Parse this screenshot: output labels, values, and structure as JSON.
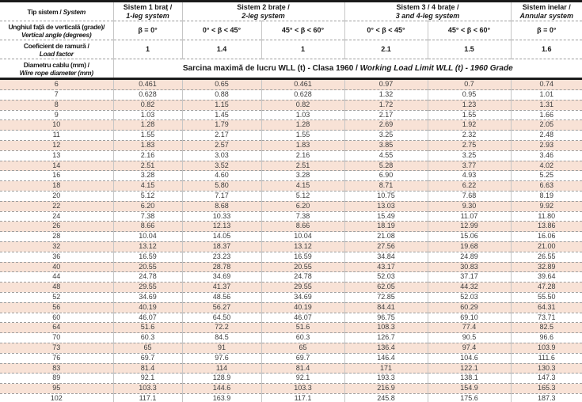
{
  "table": {
    "colors": {
      "row_shade": "#f8e2d6",
      "rule_dark": "#1b1b1b"
    },
    "corner": {
      "ro": "Tip sistem /",
      "en": "System"
    },
    "systems": [
      {
        "ro": "Sistem 1 braț /",
        "en": "1-leg system"
      },
      {
        "ro": "Sistem 2 brațe /",
        "en": "2-leg system"
      },
      {
        "ro": "Sistem 3 / 4 brațe /",
        "en": "3 and 4-leg system"
      },
      {
        "ro": "Sistem inelar /",
        "en": "Annular system"
      }
    ],
    "angle": {
      "label_ro": "Unghiul față de verticală (grade)/",
      "label_en": "Vertical angle (degrees)",
      "values": [
        "β = 0°",
        "0° < β < 45°",
        "45° < β < 60°",
        "0° < β < 45°",
        "45° < β < 60°",
        "β = 0°"
      ]
    },
    "load_factor": {
      "label_ro": "Coeficient de ramură /",
      "label_en": "Load factor",
      "values": [
        "1",
        "1.4",
        "1",
        "2.1",
        "1.5",
        "1.6"
      ]
    },
    "diameter": {
      "label_ro": "Diametru cablu (mm) /",
      "label_en": "Wire rope diameter (mm)"
    },
    "wll": {
      "label_ro": "Sarcina maximă de lucru WLL (t) - Clasa 1960 /",
      "label_en": "Working Load Limit WLL (t) - 1960 Grade"
    },
    "rows": [
      {
        "d": "6",
        "v": [
          "0.461",
          "0.65",
          "0.461",
          "0.97",
          "0.7",
          "0.74"
        ]
      },
      {
        "d": "7",
        "v": [
          "0.628",
          "0.88",
          "0.628",
          "1.32",
          "0.95",
          "1.01"
        ]
      },
      {
        "d": "8",
        "v": [
          "0.82",
          "1.15",
          "0.82",
          "1.72",
          "1.23",
          "1.31"
        ]
      },
      {
        "d": "9",
        "v": [
          "1.03",
          "1.45",
          "1.03",
          "2.17",
          "1.55",
          "1.66"
        ]
      },
      {
        "d": "10",
        "v": [
          "1.28",
          "1.79",
          "1.28",
          "2.69",
          "1.92",
          "2.05"
        ]
      },
      {
        "d": "11",
        "v": [
          "1.55",
          "2.17",
          "1.55",
          "3.25",
          "2.32",
          "2.48"
        ]
      },
      {
        "d": "12",
        "v": [
          "1.83",
          "2.57",
          "1.83",
          "3.85",
          "2.75",
          "2.93"
        ]
      },
      {
        "d": "13",
        "v": [
          "2.16",
          "3.03",
          "2.16",
          "4.55",
          "3.25",
          "3.46"
        ]
      },
      {
        "d": "14",
        "v": [
          "2.51",
          "3.52",
          "2.51",
          "5.28",
          "3.77",
          "4.02"
        ]
      },
      {
        "d": "16",
        "v": [
          "3.28",
          "4.60",
          "3.28",
          "6.90",
          "4.93",
          "5.25"
        ]
      },
      {
        "d": "18",
        "v": [
          "4.15",
          "5.80",
          "4.15",
          "8.71",
          "6.22",
          "6.63"
        ]
      },
      {
        "d": "20",
        "v": [
          "5.12",
          "7.17",
          "5.12",
          "10.75",
          "7.68",
          "8.19"
        ]
      },
      {
        "d": "22",
        "v": [
          "6.20",
          "8.68",
          "6.20",
          "13.03",
          "9.30",
          "9.92"
        ]
      },
      {
        "d": "24",
        "v": [
          "7.38",
          "10.33",
          "7.38",
          "15.49",
          "11.07",
          "11.80"
        ]
      },
      {
        "d": "26",
        "v": [
          "8.66",
          "12.13",
          "8.66",
          "18.19",
          "12.99",
          "13.86"
        ]
      },
      {
        "d": "28",
        "v": [
          "10.04",
          "14.05",
          "10.04",
          "21.08",
          "15.06",
          "16.06"
        ]
      },
      {
        "d": "32",
        "v": [
          "13.12",
          "18.37",
          "13.12",
          "27.56",
          "19.68",
          "21.00"
        ]
      },
      {
        "d": "36",
        "v": [
          "16.59",
          "23.23",
          "16.59",
          "34.84",
          "24.89",
          "26.55"
        ]
      },
      {
        "d": "40",
        "v": [
          "20.55",
          "28.78",
          "20.55",
          "43.17",
          "30.83",
          "32.89"
        ]
      },
      {
        "d": "44",
        "v": [
          "24.78",
          "34.69",
          "24.78",
          "52.03",
          "37.17",
          "39.64"
        ]
      },
      {
        "d": "48",
        "v": [
          "29.55",
          "41.37",
          "29.55",
          "62.05",
          "44.32",
          "47.28"
        ]
      },
      {
        "d": "52",
        "v": [
          "34.69",
          "48.56",
          "34.69",
          "72.85",
          "52.03",
          "55.50"
        ]
      },
      {
        "d": "56",
        "v": [
          "40.19",
          "56.27",
          "40.19",
          "84.41",
          "60.29",
          "64.31"
        ]
      },
      {
        "d": "60",
        "v": [
          "46.07",
          "64.50",
          "46.07",
          "96.75",
          "69.10",
          "73.71"
        ]
      },
      {
        "d": "64",
        "v": [
          "51.6",
          "72.2",
          "51.6",
          "108.3",
          "77.4",
          "82.5"
        ]
      },
      {
        "d": "70",
        "v": [
          "60.3",
          "84.5",
          "60.3",
          "126.7",
          "90.5",
          "96.6"
        ]
      },
      {
        "d": "73",
        "v": [
          "65",
          "91",
          "65",
          "136.4",
          "97.4",
          "103.9"
        ]
      },
      {
        "d": "76",
        "v": [
          "69.7",
          "97.6",
          "69.7",
          "146.4",
          "104.6",
          "111.6"
        ]
      },
      {
        "d": "83",
        "v": [
          "81.4",
          "114",
          "81.4",
          "171",
          "122.1",
          "130.3"
        ]
      },
      {
        "d": "89",
        "v": [
          "92.1",
          "128.9",
          "92.1",
          "193.3",
          "138.1",
          "147.3"
        ]
      },
      {
        "d": "95",
        "v": [
          "103.3",
          "144.6",
          "103.3",
          "216.9",
          "154.9",
          "165.3"
        ]
      },
      {
        "d": "102",
        "v": [
          "117.1",
          "163.9",
          "117.1",
          "245.8",
          "175.6",
          "187.3"
        ]
      }
    ]
  }
}
